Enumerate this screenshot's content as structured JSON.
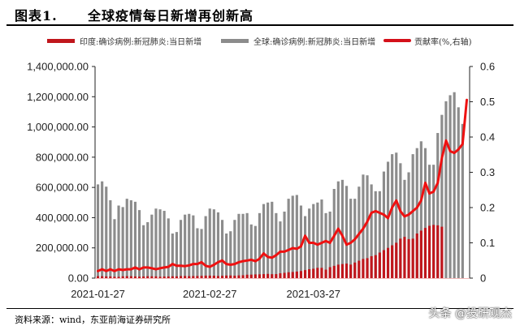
{
  "header": {
    "figure_label": "图表1.",
    "title": "全球疫情每日新增再创新高"
  },
  "legend": [
    {
      "label": "印度:确诊病例:新冠肺炎:当日新增",
      "type": "bar",
      "color": "#c0161c"
    },
    {
      "label": "全球:确诊病例:新冠肺炎:当日新增",
      "type": "bar",
      "color": "#8c8c8c"
    },
    {
      "label": "贡献率(%,右轴)",
      "type": "line",
      "color": "#ee1111"
    }
  ],
  "footer": {
    "source": "资料来源：wind，东亚前海证券研究所",
    "watermark": "头条 @投研观杰"
  },
  "chart_data": {
    "type": "bar",
    "title": "全球疫情每日新增再创新高",
    "xlabel": "",
    "ylabel": "",
    "y_left": {
      "ylim": [
        0,
        1400000
      ],
      "ticks": [
        "0.00",
        "200,000.00",
        "400,000.00",
        "600,000.00",
        "800,000.00",
        "1,000,000.00",
        "1,200,000.00",
        "1,400,000.00"
      ]
    },
    "y_right": {
      "ylim": [
        0,
        0.6
      ],
      "ticks": [
        "0",
        "0.1",
        "0.2",
        "0.3",
        "0.4",
        "0.5",
        "0.6"
      ]
    },
    "x_tick_labels": [
      {
        "label": "2021-01-27",
        "index": 0
      },
      {
        "label": "2021-02-27",
        "index": 27
      },
      {
        "label": "2021-03-27",
        "index": 52
      }
    ],
    "grid": false,
    "legend_position": "top",
    "series": [
      {
        "name": "全球:确诊病例:新冠肺炎:当日新增",
        "type": "bar",
        "axis": "left",
        "values": [
          620000,
          640000,
          605000,
          515000,
          390000,
          480000,
          470000,
          525000,
          515000,
          505000,
          450000,
          350000,
          370000,
          420000,
          460000,
          455000,
          445000,
          395000,
          295000,
          305000,
          385000,
          420000,
          425000,
          415000,
          330000,
          325000,
          410000,
          460000,
          455000,
          435000,
          385000,
          295000,
          310000,
          385000,
          425000,
          425000,
          430000,
          355000,
          345000,
          430000,
          490000,
          500000,
          505000,
          430000,
          375000,
          440000,
          525000,
          545000,
          550000,
          480000,
          410000,
          460000,
          490000,
          500000,
          520000,
          430000,
          440000,
          590000,
          640000,
          650000,
          610000,
          525000,
          525000,
          605000,
          685000,
          680000,
          620000,
          575000,
          575000,
          705000,
          770000,
          820000,
          830000,
          760000,
          650000,
          700000,
          820000,
          860000,
          905000,
          860000,
          750000,
          750000,
          960000,
          1080000,
          1170000,
          1210000,
          1230000,
          1130000,
          1020000,
          0
        ]
      },
      {
        "name": "印度:确诊病例:新冠肺炎:当日新增",
        "type": "bar",
        "axis": "left",
        "values": [
          13000,
          12500,
          11500,
          11000,
          9000,
          8500,
          12000,
          13000,
          12500,
          11000,
          9500,
          11000,
          12500,
          12000,
          11500,
          9000,
          10500,
          11000,
          12000,
          11500,
          13500,
          14000,
          13000,
          13500,
          14000,
          15000,
          16500,
          16500,
          16000,
          14000,
          15500,
          17000,
          17500,
          16000,
          18000,
          19000,
          22500,
          23000,
          24500,
          25000,
          26500,
          28000,
          26000,
          26500,
          32000,
          35000,
          39000,
          40500,
          43500,
          47000,
          53000,
          59000,
          62000,
          68000,
          68000,
          56000,
          72500,
          81000,
          89000,
          93000,
          96000,
          89500,
          103000,
          115000,
          127000,
          132000,
          145000,
          152000,
          169000,
          185000,
          200000,
          217000,
          234000,
          261000,
          273000,
          258000,
          261000,
          295000,
          314000,
          332000,
          346000,
          352000,
          349000,
          340000,
          0,
          0,
          0,
          0,
          0,
          0
        ]
      },
      {
        "name": "贡献率(%,右轴)",
        "type": "line",
        "axis": "right",
        "values": [
          0.02,
          0.025,
          0.02,
          0.025,
          0.02,
          0.025,
          0.023,
          0.025,
          0.025,
          0.03,
          0.025,
          0.03,
          0.03,
          0.028,
          0.025,
          0.028,
          0.03,
          0.032,
          0.04,
          0.035,
          0.035,
          0.034,
          0.036,
          0.04,
          0.04,
          0.045,
          0.035,
          0.032,
          0.038,
          0.045,
          0.05,
          0.04,
          0.038,
          0.04,
          0.045,
          0.048,
          0.05,
          0.052,
          0.048,
          0.055,
          0.07,
          0.06,
          0.058,
          0.065,
          0.075,
          0.075,
          0.08,
          0.085,
          0.083,
          0.09,
          0.12,
          0.1,
          0.1,
          0.095,
          0.1,
          0.105,
          0.1,
          0.12,
          0.14,
          0.12,
          0.095,
          0.1,
          0.11,
          0.125,
          0.14,
          0.16,
          0.185,
          0.19,
          0.185,
          0.18,
          0.17,
          0.2,
          0.22,
          0.19,
          0.175,
          0.18,
          0.19,
          0.2,
          0.22,
          0.27,
          0.24,
          0.245,
          0.27,
          0.34,
          0.39,
          0.36,
          0.355,
          0.365,
          0.38,
          0.505
        ]
      }
    ]
  }
}
